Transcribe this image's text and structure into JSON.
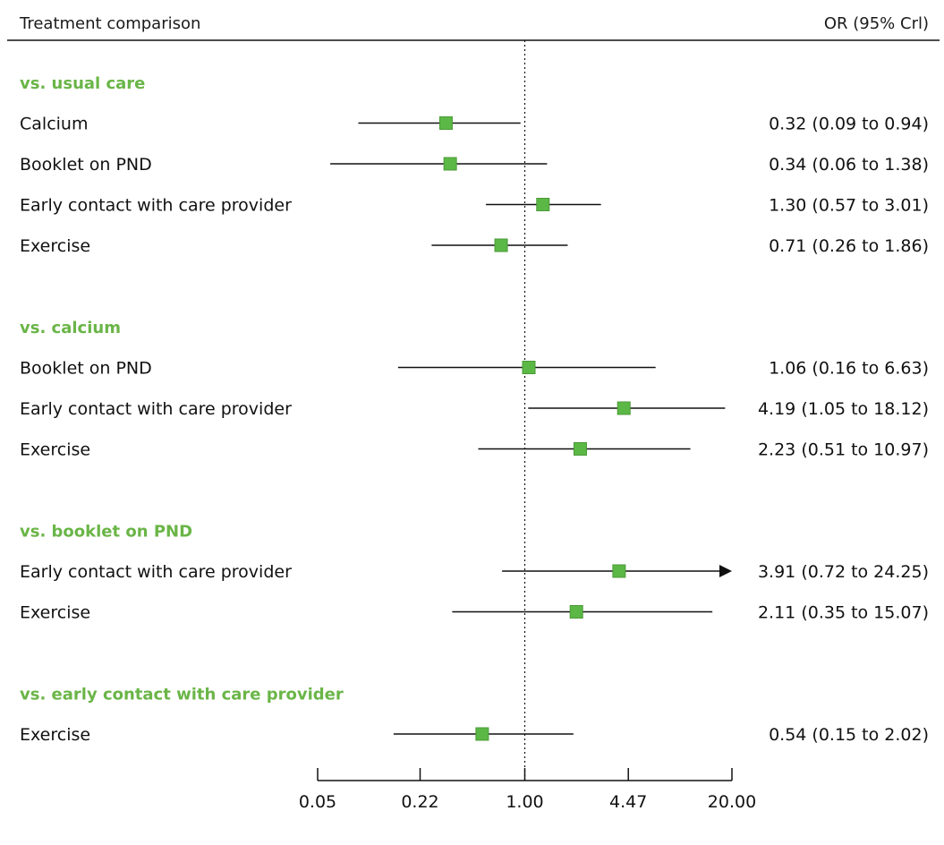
{
  "header": {
    "left_label": "Treatment comparison",
    "right_label": "OR (95% Crl)"
  },
  "colors": {
    "group_heading": "#6ab547",
    "marker": "#5cb846",
    "marker_stroke": "#4a9a36",
    "line": "#111111"
  },
  "chart_data": {
    "type": "forest",
    "scale": "log",
    "reference_value": 1.0,
    "xlim": [
      0.05,
      20.0
    ],
    "x_ticks": [
      {
        "value": 0.05,
        "label": "0.05"
      },
      {
        "value": 0.22,
        "label": "0.22"
      },
      {
        "value": 1.0,
        "label": "1.00"
      },
      {
        "value": 4.47,
        "label": "4.47"
      },
      {
        "value": 20.0,
        "label": "20.00"
      }
    ],
    "groups": [
      {
        "title": "vs. usual care",
        "rows": [
          {
            "label": "Calcium",
            "or": 0.32,
            "lower": 0.09,
            "upper": 0.94,
            "text": "0.32 (0.09 to 0.94)"
          },
          {
            "label": "Booklet on PND",
            "or": 0.34,
            "lower": 0.06,
            "upper": 1.38,
            "text": "0.34 (0.06 to 1.38)"
          },
          {
            "label": "Early contact with care provider",
            "or": 1.3,
            "lower": 0.57,
            "upper": 3.01,
            "text": "1.30 (0.57 to 3.01)"
          },
          {
            "label": "Exercise",
            "or": 0.71,
            "lower": 0.26,
            "upper": 1.86,
            "text": "0.71 (0.26 to 1.86)"
          }
        ]
      },
      {
        "title": "vs. calcium",
        "rows": [
          {
            "label": "Booklet on PND",
            "or": 1.06,
            "lower": 0.16,
            "upper": 6.63,
            "text": "1.06 (0.16 to 6.63)"
          },
          {
            "label": "Early contact with care provider",
            "or": 4.19,
            "lower": 1.05,
            "upper": 18.12,
            "text": "4.19 (1.05 to 18.12)"
          },
          {
            "label": "Exercise",
            "or": 2.23,
            "lower": 0.51,
            "upper": 10.97,
            "text": "2.23 (0.51 to 10.97)"
          }
        ]
      },
      {
        "title": "vs. booklet on PND",
        "rows": [
          {
            "label": "Early contact with care provider",
            "or": 3.91,
            "lower": 0.72,
            "upper": 24.25,
            "text": "3.91 (0.72 to 24.25)"
          },
          {
            "label": "Exercise",
            "or": 2.11,
            "lower": 0.35,
            "upper": 15.07,
            "text": "2.11 (0.35 to 15.07)"
          }
        ]
      },
      {
        "title": "vs. early contact with care provider",
        "rows": [
          {
            "label": "Exercise",
            "or": 0.54,
            "lower": 0.15,
            "upper": 2.02,
            "text": "0.54 (0.15 to 2.02)"
          }
        ]
      }
    ]
  }
}
